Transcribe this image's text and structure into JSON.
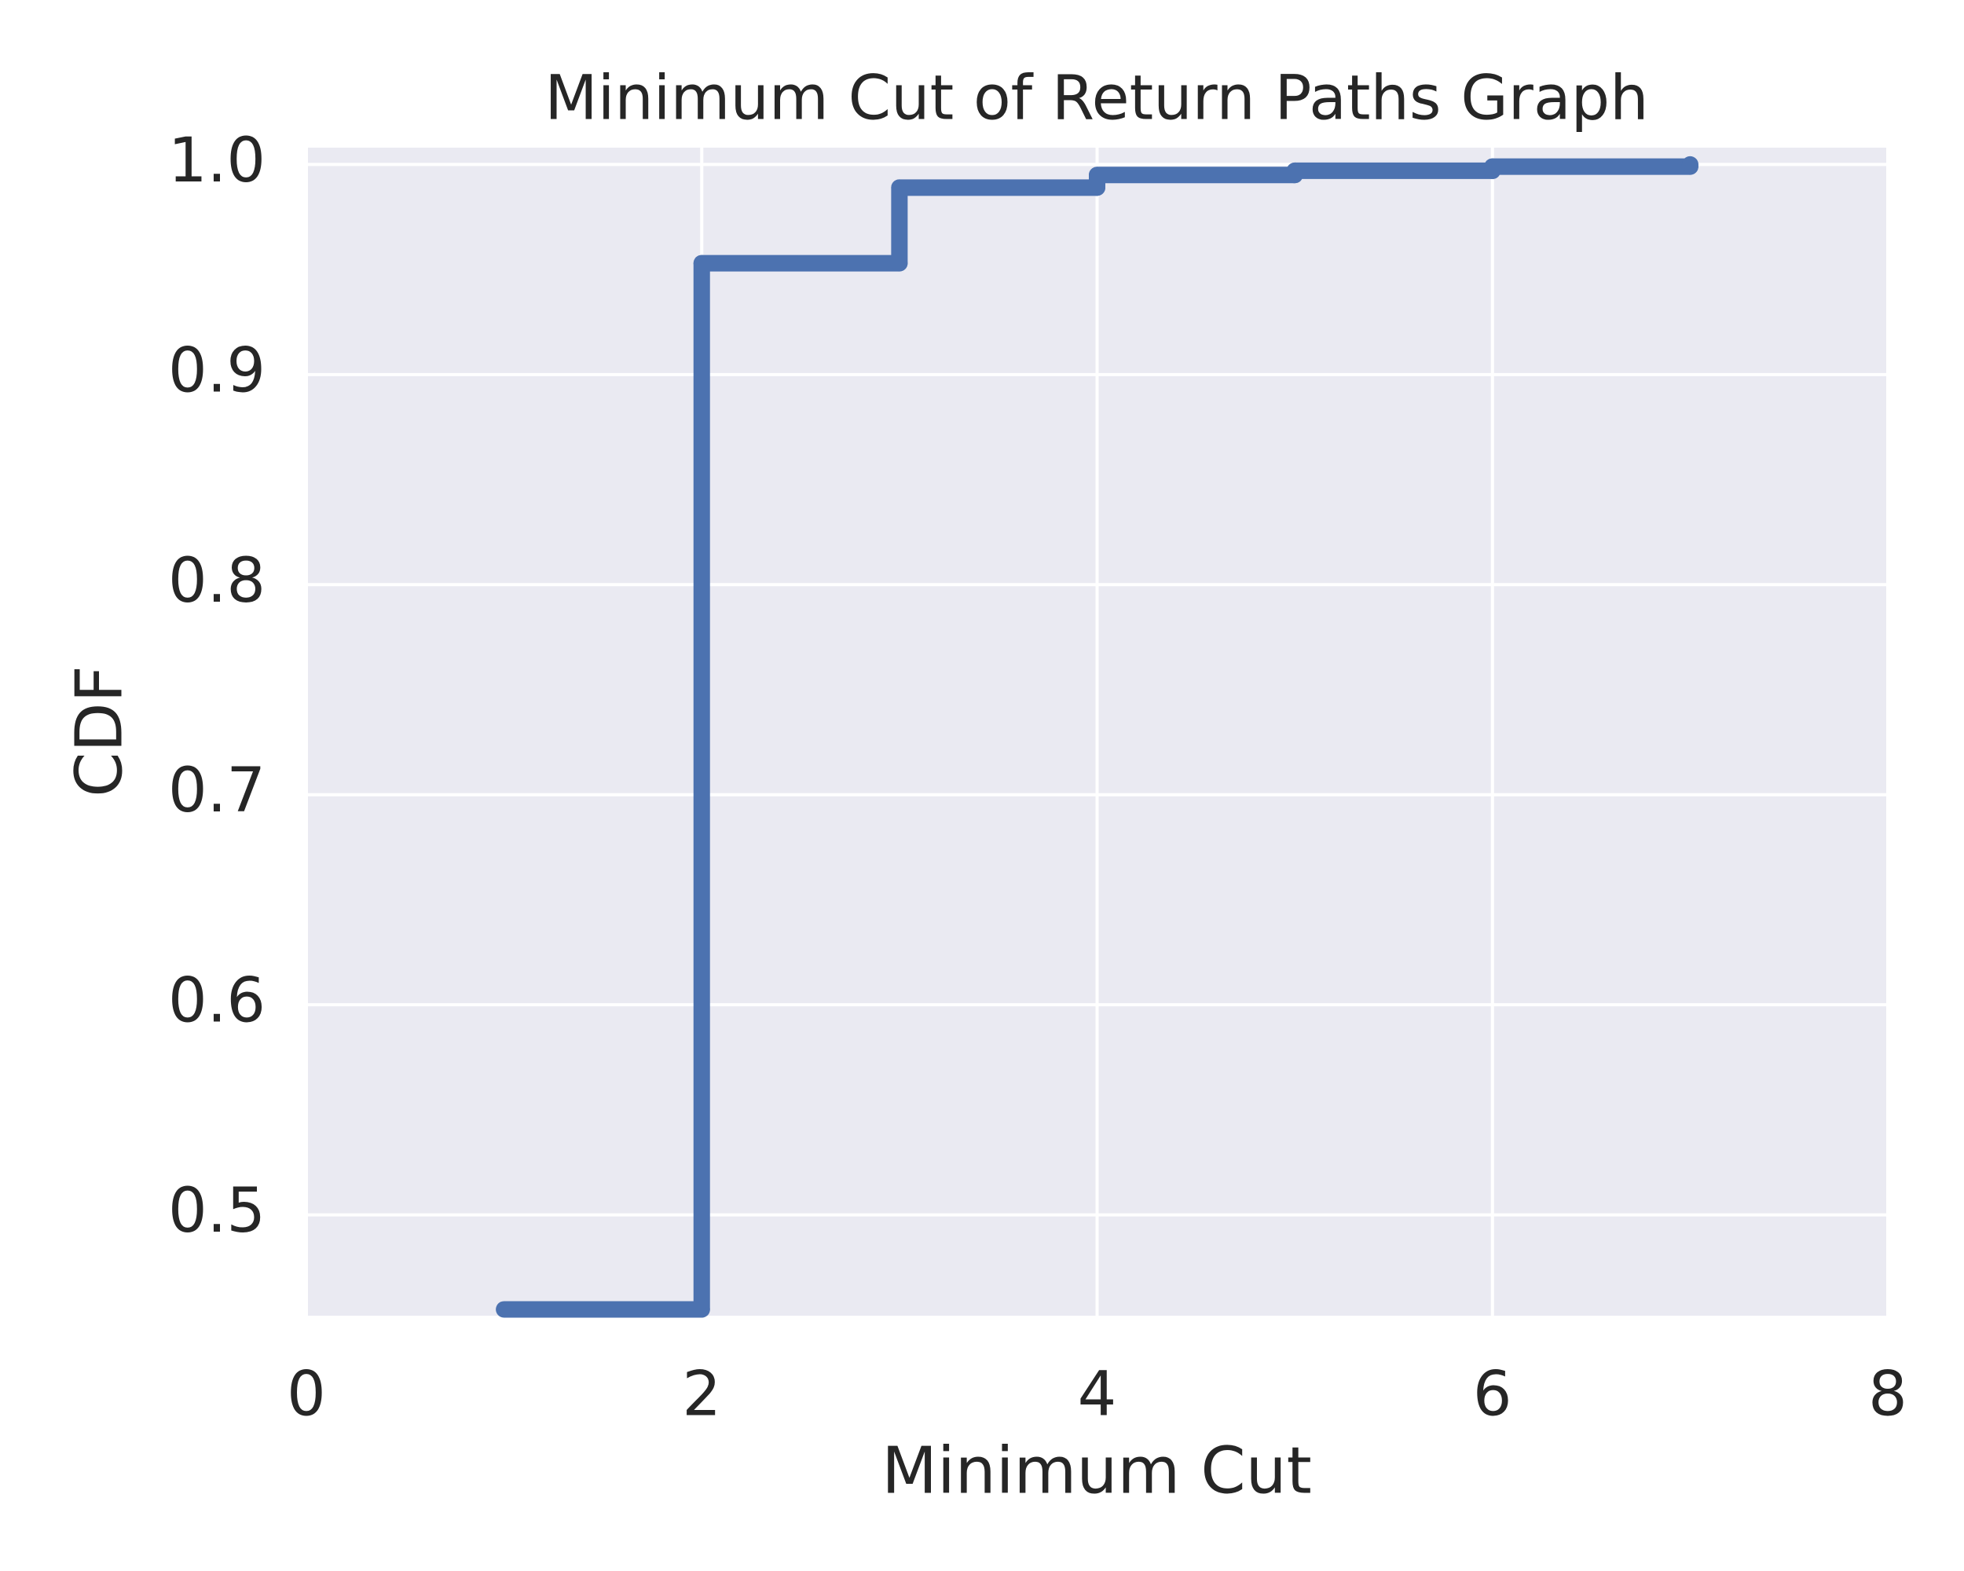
{
  "chart_data": {
    "type": "step",
    "title": "Minimum Cut of Return Paths Graph",
    "x_label": "Minimum Cut",
    "y_label": "CDF",
    "x": [
      1,
      2,
      3,
      4,
      5,
      6,
      7
    ],
    "series": [
      {
        "name": "CDF",
        "color": "#4c72b0",
        "values": [
          0.455,
          0.953,
          0.989,
          0.995,
          0.997,
          0.999,
          1.0
        ]
      }
    ],
    "xlim": [
      0,
      8
    ],
    "xticks": [
      0,
      2,
      4,
      6,
      8
    ],
    "ylim": [
      0.452,
      1.008
    ],
    "yticks": [
      0.5,
      0.6,
      0.7,
      0.8,
      0.9,
      {
        "value": 1,
        "label": "1.0"
      }
    ],
    "grid": true,
    "background": "#eaeaf2"
  }
}
